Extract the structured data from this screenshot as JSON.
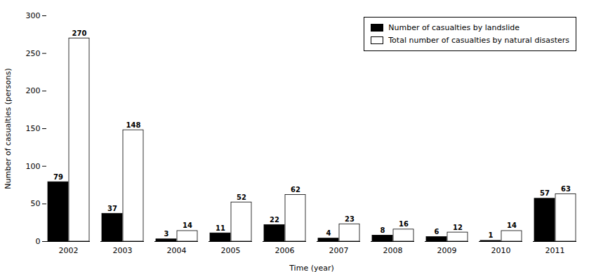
{
  "chart_data": {
    "type": "bar",
    "xlabel": "Time (year)",
    "ylabel": "Number of casualties (persons)",
    "categories": [
      "2002",
      "2003",
      "2004",
      "2005",
      "2006",
      "2007",
      "2008",
      "2009",
      "2010",
      "2011"
    ],
    "series": [
      {
        "name": "Number of casualties by landslide",
        "color": "#000000",
        "values": [
          79,
          37,
          3,
          11,
          22,
          4,
          8,
          6,
          1,
          57
        ]
      },
      {
        "name": "Total number of casualties by natural disasters",
        "color": "#ffffff",
        "values": [
          270,
          148,
          14,
          52,
          62,
          23,
          16,
          12,
          14,
          63
        ]
      }
    ],
    "ylim": [
      0,
      300
    ],
    "yticks": [
      0,
      50,
      100,
      150,
      200,
      250,
      300
    ],
    "grid": false,
    "legend": "upper right",
    "data_labels": true
  }
}
